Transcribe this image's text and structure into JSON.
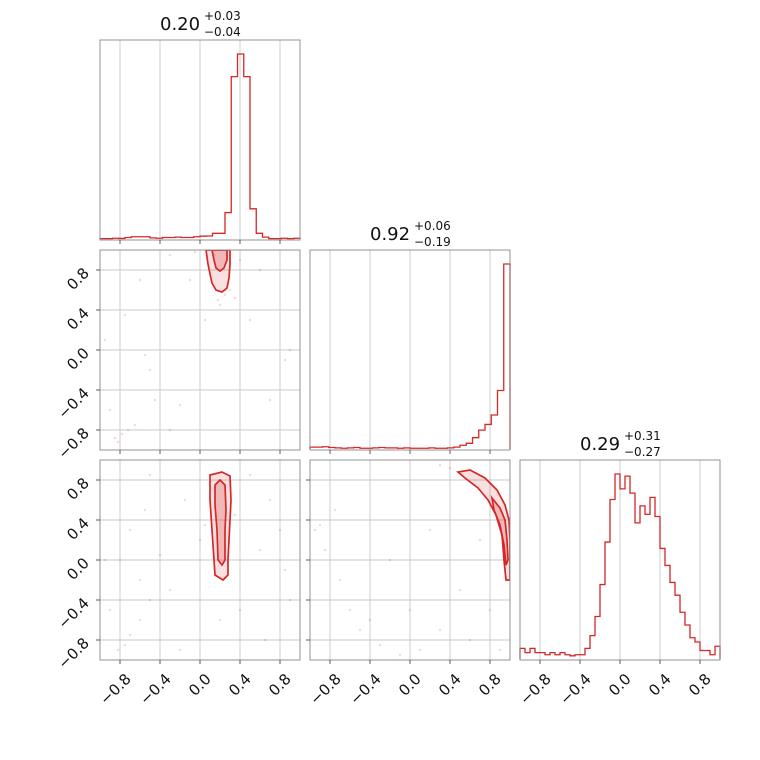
{
  "colors": {
    "series": "#d62728",
    "grid": "#c8c8c8",
    "frame": "#888888"
  },
  "chart_data": {
    "type": "corner",
    "parameters": [
      {
        "title": {
          "median": "0.20",
          "plus": "+0.03",
          "minus": "−0.04"
        },
        "range": [
          -1,
          1
        ],
        "hist": [
          0.002,
          0.002,
          0.004,
          0.003,
          0.008,
          0.012,
          0.012,
          0.012,
          0.006,
          0.004,
          0.008,
          0.008,
          0.01,
          0.008,
          0.008,
          0.012,
          0.015,
          0.016,
          0.03,
          0.03,
          0.14,
          0.86,
          0.98,
          0.86,
          0.16,
          0.03,
          0.01,
          0.002,
          0.002,
          0.004,
          0.002,
          0.004
        ]
      },
      {
        "title": {
          "median": "0.92",
          "plus": "+0.06",
          "minus": "−0.19"
        },
        "range": [
          -1,
          1
        ],
        "hist": [
          0.01,
          0.01,
          0.012,
          0.008,
          0.006,
          0.004,
          0.006,
          0.008,
          0.004,
          0.004,
          0.006,
          0.008,
          0.006,
          0.006,
          0.004,
          0.006,
          0.004,
          0.004,
          0.004,
          0.006,
          0.004,
          0.004,
          0.006,
          0.01,
          0.02,
          0.03,
          0.06,
          0.1,
          0.13,
          0.18,
          0.31,
          0.98
        ]
      },
      {
        "title": {
          "median": "0.29",
          "plus": "+0.31",
          "minus": "−0.27"
        },
        "range": [
          -1,
          1
        ],
        "hist": [
          0.05,
          0.03,
          0.05,
          0.03,
          0.03,
          0.02,
          0.03,
          0.02,
          0.03,
          0.02,
          0.015,
          0.02,
          0.02,
          0.05,
          0.11,
          0.2,
          0.35,
          0.55,
          0.75,
          0.87,
          0.8,
          0.86,
          0.78,
          0.64,
          0.72,
          0.68,
          0.76,
          0.67,
          0.52,
          0.44,
          0.36,
          0.3,
          0.22,
          0.16,
          0.1,
          0.08,
          0.04,
          0.04,
          0.02,
          0.06
        ]
      }
    ],
    "pairs": [
      {
        "x_param": 0,
        "y_param": 1,
        "xlim": [
          -1,
          1
        ],
        "ylim": [
          -1,
          1
        ],
        "contour_outer": [
          [
            0.06,
            1.0
          ],
          [
            0.08,
            0.86
          ],
          [
            0.1,
            0.76
          ],
          [
            0.12,
            0.67
          ],
          [
            0.16,
            0.6
          ],
          [
            0.22,
            0.58
          ],
          [
            0.27,
            0.62
          ],
          [
            0.29,
            0.72
          ],
          [
            0.3,
            0.86
          ],
          [
            0.3,
            1.0
          ]
        ],
        "contour_inner": [
          [
            0.12,
            1.0
          ],
          [
            0.14,
            0.9
          ],
          [
            0.16,
            0.82
          ],
          [
            0.2,
            0.79
          ],
          [
            0.24,
            0.82
          ],
          [
            0.27,
            0.9
          ],
          [
            0.27,
            1.0
          ]
        ],
        "points": [
          [
            -0.3,
            0.95
          ],
          [
            -0.05,
            0.98
          ],
          [
            -0.6,
            0.7
          ],
          [
            -0.75,
            0.35
          ],
          [
            -0.55,
            -0.05
          ],
          [
            -0.5,
            -0.2
          ],
          [
            -0.45,
            -0.5
          ],
          [
            -0.65,
            -0.75
          ],
          [
            -0.72,
            -0.8
          ],
          [
            -0.78,
            -0.84
          ],
          [
            -0.85,
            -0.88
          ],
          [
            -0.82,
            -0.92
          ],
          [
            -0.9,
            -0.6
          ],
          [
            0.9,
            0.0
          ],
          [
            0.85,
            -0.1
          ],
          [
            0.7,
            -0.5
          ],
          [
            -0.2,
            -0.55
          ],
          [
            0.15,
            0.95
          ],
          [
            0.25,
            0.55
          ],
          [
            0.3,
            0.6
          ],
          [
            0.18,
            0.5
          ],
          [
            -0.95,
            0.1
          ],
          [
            0.4,
            0.9
          ],
          [
            0.5,
            0.3
          ],
          [
            -0.1,
            0.7
          ],
          [
            0.05,
            0.3
          ],
          [
            -0.3,
            -0.8
          ],
          [
            0.6,
            0.8
          ],
          [
            0.2,
            0.45
          ],
          [
            0.35,
            0.52
          ]
        ]
      },
      {
        "x_param": 0,
        "y_param": 2,
        "xlim": [
          -1,
          1
        ],
        "ylim": [
          -1,
          1
        ],
        "contour_outer": [
          [
            0.1,
            0.85
          ],
          [
            0.22,
            0.88
          ],
          [
            0.3,
            0.84
          ],
          [
            0.31,
            0.6
          ],
          [
            0.3,
            0.4
          ],
          [
            0.29,
            0.2
          ],
          [
            0.28,
            0.0
          ],
          [
            0.28,
            -0.15
          ],
          [
            0.23,
            -0.2
          ],
          [
            0.15,
            -0.15
          ],
          [
            0.14,
            0.0
          ],
          [
            0.12,
            0.3
          ],
          [
            0.1,
            0.6
          ]
        ],
        "contour_inner": [
          [
            0.15,
            0.75
          ],
          [
            0.2,
            0.8
          ],
          [
            0.25,
            0.75
          ],
          [
            0.26,
            0.5
          ],
          [
            0.25,
            0.3
          ],
          [
            0.25,
            0.0
          ],
          [
            0.22,
            -0.05
          ],
          [
            0.18,
            0.0
          ],
          [
            0.17,
            0.3
          ],
          [
            0.15,
            0.55
          ]
        ],
        "points": [
          [
            -0.5,
            0.85
          ],
          [
            -0.55,
            0.5
          ],
          [
            -0.7,
            0.3
          ],
          [
            -0.8,
            0.0
          ],
          [
            -0.6,
            -0.2
          ],
          [
            -0.5,
            -0.4
          ],
          [
            -0.6,
            -0.6
          ],
          [
            -0.7,
            -0.75
          ],
          [
            -0.75,
            -0.85
          ],
          [
            -0.82,
            -0.9
          ],
          [
            -0.9,
            -0.5
          ],
          [
            0.7,
            0.6
          ],
          [
            0.8,
            0.3
          ],
          [
            0.85,
            -0.1
          ],
          [
            0.9,
            -0.4
          ],
          [
            0.65,
            -0.8
          ],
          [
            0.4,
            -0.5
          ],
          [
            -0.3,
            -0.3
          ],
          [
            0.0,
            0.2
          ],
          [
            0.05,
            0.35
          ],
          [
            -0.15,
            0.6
          ],
          [
            0.35,
            0.45
          ],
          [
            -0.95,
            0.0
          ],
          [
            0.5,
            0.85
          ],
          [
            -0.2,
            -0.9
          ],
          [
            0.2,
            -0.6
          ],
          [
            -0.4,
            0.05
          ],
          [
            0.6,
            0.1
          ]
        ]
      },
      {
        "x_param": 1,
        "y_param": 2,
        "xlim": [
          -1,
          1
        ],
        "ylim": [
          -1,
          1
        ],
        "contour_outer": [
          [
            0.6,
            0.9
          ],
          [
            0.75,
            0.82
          ],
          [
            0.87,
            0.7
          ],
          [
            0.95,
            0.55
          ],
          [
            0.99,
            0.4
          ],
          [
            1.0,
            0.2
          ],
          [
            1.0,
            -0.2
          ],
          [
            0.96,
            -0.2
          ],
          [
            0.94,
            0.0
          ],
          [
            0.92,
            0.25
          ],
          [
            0.86,
            0.45
          ],
          [
            0.78,
            0.6
          ],
          [
            0.68,
            0.72
          ],
          [
            0.55,
            0.82
          ],
          [
            0.48,
            0.88
          ]
        ],
        "contour_inner": [
          [
            0.82,
            0.62
          ],
          [
            0.9,
            0.52
          ],
          [
            0.95,
            0.4
          ],
          [
            0.97,
            0.2
          ],
          [
            0.98,
            0.0
          ],
          [
            0.96,
            -0.05
          ],
          [
            0.94,
            0.15
          ],
          [
            0.9,
            0.35
          ],
          [
            0.84,
            0.5
          ]
        ],
        "points": [
          [
            -0.9,
            0.35
          ],
          [
            -0.85,
            0.1
          ],
          [
            -0.7,
            -0.2
          ],
          [
            -0.6,
            -0.5
          ],
          [
            -0.5,
            -0.7
          ],
          [
            -0.3,
            -0.85
          ],
          [
            -0.1,
            -0.95
          ],
          [
            0.1,
            -0.9
          ],
          [
            0.3,
            -0.7
          ],
          [
            0.5,
            -0.3
          ],
          [
            0.4,
            0.92
          ],
          [
            0.3,
            0.95
          ],
          [
            -0.95,
            0.3
          ],
          [
            0.8,
            -0.5
          ],
          [
            0.6,
            -0.8
          ],
          [
            -0.2,
            0.0
          ],
          [
            0.0,
            -0.5
          ],
          [
            -0.4,
            -0.6
          ],
          [
            0.7,
            0.2
          ],
          [
            0.2,
            0.3
          ],
          [
            -0.75,
            0.5
          ],
          [
            0.9,
            -0.9
          ]
        ]
      }
    ],
    "ticks": {
      "values": [
        -0.8,
        -0.4,
        0.0,
        0.4,
        0.8
      ],
      "labels": [
        "−0.8",
        "−0.4",
        "0.0",
        "0.4",
        "0.8"
      ]
    },
    "grid": true
  }
}
